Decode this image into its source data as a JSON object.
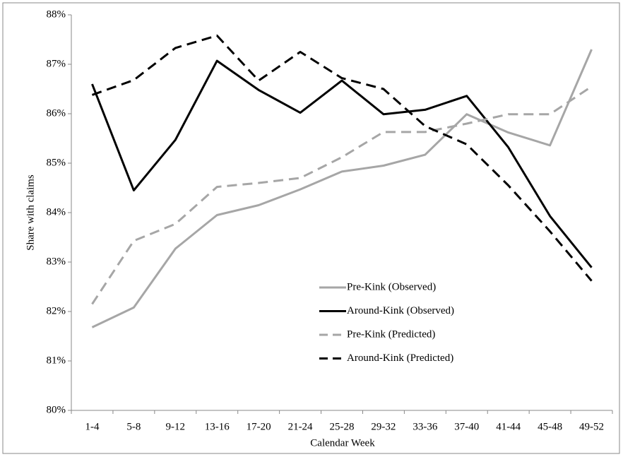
{
  "chart_data": {
    "type": "line",
    "x_label": "Calendar Week",
    "y_label": "Share with claims",
    "categories": [
      "1-4",
      "5-8",
      "9-12",
      "13-16",
      "17-20",
      "21-24",
      "25-28",
      "29-32",
      "33-36",
      "37-40",
      "41-44",
      "45-48",
      "49-52"
    ],
    "series": [
      {
        "name": "Pre-Kink (Observed)",
        "color": "#a6a6a6",
        "style": "solid",
        "values": [
          81.68,
          82.08,
          83.27,
          83.95,
          84.15,
          84.47,
          84.83,
          84.95,
          85.17,
          85.99,
          85.62,
          85.36,
          87.3
        ]
      },
      {
        "name": "Around-Kink (Observed)",
        "color": "#000000",
        "style": "solid",
        "values": [
          86.6,
          84.45,
          85.47,
          87.07,
          86.48,
          86.02,
          86.67,
          85.99,
          86.08,
          86.36,
          85.32,
          83.93,
          82.89
        ]
      },
      {
        "name": "Pre-Kink (Predicted)",
        "color": "#a6a6a6",
        "style": "dashed",
        "values": [
          82.15,
          83.43,
          83.77,
          84.52,
          84.6,
          84.7,
          85.12,
          85.63,
          85.63,
          85.8,
          85.99,
          85.99,
          86.55
        ]
      },
      {
        "name": "Around-Kink (Predicted)",
        "color": "#000000",
        "style": "dashed",
        "values": [
          86.38,
          86.68,
          87.33,
          87.58,
          86.67,
          87.25,
          86.72,
          86.5,
          85.75,
          85.38,
          84.55,
          83.62,
          82.62
        ]
      }
    ],
    "ylim": [
      80,
      88
    ],
    "yticks": [
      {
        "value": 80,
        "label": "80%"
      },
      {
        "value": 81,
        "label": "81%"
      },
      {
        "value": 82,
        "label": "82%"
      },
      {
        "value": 83,
        "label": "83%"
      },
      {
        "value": 84,
        "label": "84%"
      },
      {
        "value": 85,
        "label": "85%"
      },
      {
        "value": 86,
        "label": "86%"
      },
      {
        "value": 87,
        "label": "87%"
      },
      {
        "value": 88,
        "label": "88%"
      }
    ],
    "grid": false,
    "legend": "bottom-center"
  }
}
